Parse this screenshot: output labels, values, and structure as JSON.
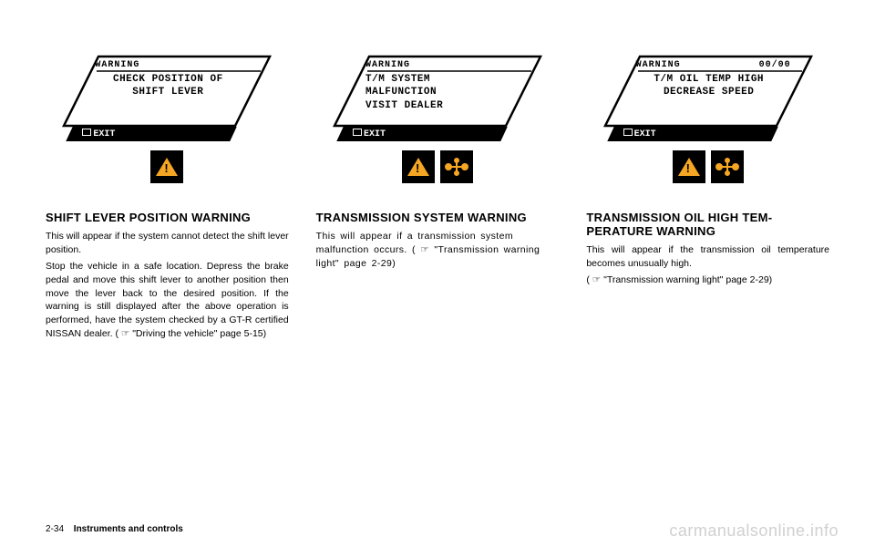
{
  "colors": {
    "background": "#ffffff",
    "text": "#000000",
    "icon_orange": "#f5a623",
    "icon_bg": "#000000",
    "watermark": "#d0d0d0",
    "screen_outline": "#000000"
  },
  "typography": {
    "body_font": "Arial, Helvetica, sans-serif",
    "screen_font": "Courier New, monospace",
    "heading_size_pt": 10,
    "body_size_pt": 8
  },
  "columns": [
    {
      "screen": {
        "warning_label": "WARNING",
        "lines": "CHECK POSITION OF\nSHIFT LEVER",
        "center": true,
        "exit_label": "EXIT",
        "date": ""
      },
      "icons": [
        "warning"
      ],
      "heading": "SHIFT LEVER POSITION WARNING",
      "paragraphs": [
        "This will appear if the system cannot detect the shift lever position.",
        "Stop the vehicle in a safe location. Depress the brake pedal and move this shift lever to another position then move the lever back to the desired position. If the warning is still displayed after the above operation is performed, have the system checked by a GT-R certified NISSAN dealer. ( ☞ \"Driving the vehicle\" page 5-15)"
      ]
    },
    {
      "screen": {
        "warning_label": "WARNING",
        "lines": "T/M SYSTEM\nMALFUNCTION\nVISIT DEALER",
        "center": false,
        "exit_label": "EXIT",
        "date": ""
      },
      "icons": [
        "warning",
        "transmission"
      ],
      "heading": "TRANSMISSION SYSTEM WARN­ING",
      "paragraphs": [
        "This will appear if a transmission system malfunction occurs. ( ☞ \"Transmission warn­ing light\" page 2-29)"
      ],
      "wide": true
    },
    {
      "screen": {
        "warning_label": "WARNING",
        "lines": "T/M OIL TEMP HIGH\nDECREASE SPEED",
        "center": true,
        "exit_label": "EXIT",
        "date": "00/00"
      },
      "icons": [
        "warning",
        "transmission"
      ],
      "heading": "TRANSMISSION OIL HIGH TEM­PERATURE WARNING",
      "paragraphs": [
        "This will appear if the transmission oil tempera­ture becomes unusually high.",
        "( ☞ \"Transmission warning light\" page 2-29)"
      ]
    }
  ],
  "footer": {
    "page": "2-34",
    "section": "Instruments and controls"
  },
  "watermark": "carmanualsonline.info"
}
